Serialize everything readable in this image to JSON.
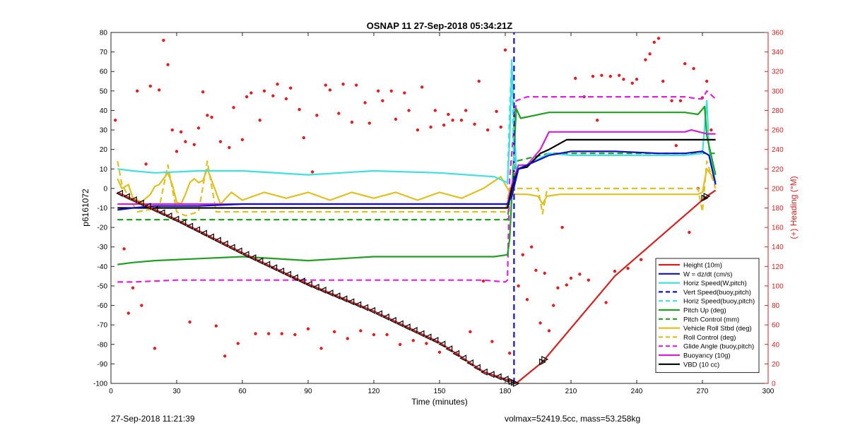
{
  "chart_data": {
    "type": "line",
    "title": "OSNAP 11 27-Sep-2018 05:34:21Z",
    "xlabel": "Time (minutes)",
    "ylabel": "p6161072",
    "y2label": "(+) Heading (°M)",
    "xlim": [
      0,
      300
    ],
    "ylim": [
      -100,
      80
    ],
    "y2lim": [
      0,
      360
    ],
    "xticks": [
      0,
      30,
      60,
      90,
      120,
      150,
      180,
      210,
      240,
      270,
      300
    ],
    "yticks": [
      -100,
      -90,
      -80,
      -70,
      -60,
      -50,
      -40,
      -30,
      -20,
      -10,
      0,
      10,
      20,
      30,
      40,
      50,
      60,
      70,
      80
    ],
    "y2ticks": [
      0,
      20,
      40,
      60,
      80,
      100,
      120,
      140,
      160,
      180,
      200,
      220,
      240,
      260,
      280,
      300,
      320,
      340,
      360
    ],
    "grid": false,
    "legend_position": "bottom-right",
    "series": [
      {
        "name": "Height (10m)",
        "color": "#d62020",
        "style": "solid",
        "x": [
          3,
          30,
          60,
          90,
          120,
          150,
          170,
          183,
          185,
          197,
          230,
          272,
          276
        ],
        "y": [
          -2,
          -16,
          -33,
          -49,
          -63,
          -79,
          -94,
          -99,
          -100,
          -89,
          -45,
          -4,
          -1
        ]
      },
      {
        "name": "W = dz/dt (cm/s)",
        "color": "#1010c0",
        "style": "solid",
        "x": [
          3,
          10,
          20,
          40,
          60,
          90,
          120,
          150,
          175,
          181,
          183,
          186,
          192,
          200,
          210,
          230,
          250,
          262,
          270,
          273,
          276
        ],
        "y": [
          -11,
          -10,
          -9,
          -9,
          -8,
          -8,
          -8,
          -8,
          -8,
          -8,
          -4,
          10,
          13,
          17,
          19,
          19,
          18,
          18,
          19,
          17,
          2
        ]
      },
      {
        "name": "Horiz Speed(W,pitch)",
        "color": "#3fe0e0",
        "style": "solid",
        "x": [
          3,
          10,
          20,
          40,
          60,
          90,
          120,
          150,
          175,
          181,
          182,
          183,
          185,
          190,
          200,
          210,
          240,
          262,
          270,
          272,
          273,
          276
        ],
        "y": [
          10,
          9,
          8,
          9,
          9,
          7,
          9,
          8,
          6,
          3,
          25,
          64,
          10,
          12,
          18,
          17,
          17,
          17,
          18,
          45,
          20,
          3
        ]
      },
      {
        "name": "Vert Speed(buoy,pitch)",
        "color": "#1010d0",
        "style": "dash",
        "x": [
          184,
          184
        ],
        "y": [
          -100,
          80
        ]
      },
      {
        "name": "Horiz Speed(buoy,pitch)",
        "color": "#3fe0e0",
        "style": "dash",
        "x": [
          181,
          182,
          183,
          184
        ],
        "y": [
          2,
          40,
          66,
          8
        ]
      },
      {
        "name": "Pitch Up (deg)",
        "color": "#20a020",
        "style": "solid",
        "x": [
          3,
          10,
          20,
          40,
          60,
          90,
          120,
          150,
          175,
          181,
          182,
          185,
          187,
          200,
          230,
          262,
          268,
          271,
          272,
          276
        ],
        "y": [
          -39,
          -38,
          -37,
          -36,
          -35,
          -37,
          -35,
          -35,
          -35,
          -34,
          -26,
          41,
          36,
          39,
          39,
          39,
          38,
          42,
          27,
          7
        ]
      },
      {
        "name": "Pitch Control (mm)",
        "color": "#20a020",
        "style": "dash",
        "x": [
          3,
          181,
          182,
          185,
          200,
          276
        ],
        "y": [
          -16,
          -16,
          -6,
          14,
          18,
          18
        ]
      },
      {
        "name": "Vehicle Roll Stbd (deg)",
        "color": "#e0c020",
        "style": "solid",
        "x": [
          3,
          5,
          8,
          10,
          14,
          16,
          18,
          20,
          22,
          24,
          26,
          28,
          30,
          32,
          34,
          36,
          38,
          40,
          42,
          44,
          46,
          48,
          50,
          55,
          60,
          70,
          80,
          90,
          100,
          110,
          120,
          130,
          140,
          150,
          160,
          170,
          178,
          182,
          185,
          190,
          195,
          197,
          199,
          205,
          240,
          262,
          268,
          270,
          272,
          276
        ],
        "y": [
          5,
          0,
          2,
          -5,
          -7,
          -5,
          -3,
          1,
          2,
          5,
          8,
          2,
          -7,
          -8,
          -3,
          3,
          5,
          3,
          4,
          10,
          4,
          -2,
          -8,
          -2,
          -6,
          -2,
          -5,
          -2,
          -6,
          -2,
          -5,
          -2,
          -6,
          -2,
          -5,
          0,
          6,
          -2,
          -3,
          -3,
          -4,
          -8,
          -4,
          -3,
          -3,
          -3,
          -3,
          -2,
          10,
          4
        ]
      },
      {
        "name": "Roll Control (deg)",
        "color": "#e0c020",
        "style": "dash",
        "x": [
          3,
          5,
          12,
          22,
          26,
          30,
          34,
          40,
          44,
          48,
          60,
          80,
          100,
          120,
          140,
          160,
          180,
          182,
          195,
          197,
          199,
          200,
          268,
          270,
          272,
          276
        ],
        "y": [
          14,
          2,
          -12,
          -10,
          12,
          -12,
          -14,
          -12,
          14,
          -12,
          -12,
          -12,
          -12,
          -12,
          -12,
          -12,
          -12,
          0,
          0,
          -13,
          -1,
          0,
          0,
          -12,
          14,
          0
        ]
      },
      {
        "name": "Glide Angle (buoy,pitch)",
        "color": "#e020e0",
        "style": "dash",
        "x": [
          3,
          10,
          30,
          50,
          80,
          110,
          140,
          170,
          180,
          181,
          182,
          185,
          190,
          230,
          262,
          268,
          270,
          272,
          276
        ],
        "y": [
          -48,
          -48,
          -47,
          -47,
          -47,
          -47,
          -47,
          -47,
          -48,
          -47,
          5,
          45,
          47,
          47,
          47,
          46,
          46,
          50,
          46
        ]
      },
      {
        "name": "Buoyancy (10g)",
        "color": "#d020d0",
        "style": "solid",
        "x": [
          3,
          30,
          60,
          120,
          181,
          183,
          186,
          190,
          196,
          200,
          240,
          262,
          265,
          272,
          276
        ],
        "y": [
          -8,
          -8,
          -8,
          -8,
          -8,
          2,
          12,
          12,
          20,
          29,
          29,
          29,
          30,
          28,
          28
        ]
      },
      {
        "name": "VBD (10 cc)",
        "color": "#000000",
        "style": "solid",
        "x": [
          3,
          30,
          60,
          120,
          181,
          183,
          186,
          190,
          196,
          200,
          208,
          230,
          262,
          276
        ],
        "y": [
          -10,
          -10,
          -10,
          -10,
          -10,
          0,
          10,
          11,
          18,
          20,
          25,
          25,
          25,
          25
        ]
      }
    ],
    "heading_points": {
      "name": "Heading",
      "color": "#e02020",
      "axis": "right",
      "x": [
        2,
        6,
        8,
        10,
        12,
        14,
        16,
        18,
        20,
        22,
        24,
        26,
        28,
        30,
        32,
        34,
        36,
        38,
        40,
        42,
        44,
        46,
        48,
        50,
        52,
        54,
        56,
        58,
        60,
        62,
        64,
        66,
        68,
        70,
        72,
        74,
        76,
        78,
        80,
        82,
        84,
        86,
        88,
        90,
        92,
        94,
        96,
        98,
        100,
        102,
        104,
        106,
        108,
        110,
        112,
        114,
        116,
        118,
        120,
        122,
        124,
        126,
        128,
        130,
        132,
        134,
        136,
        138,
        140,
        142,
        144,
        146,
        148,
        150,
        152,
        154,
        156,
        158,
        160,
        162,
        164,
        166,
        168,
        170,
        172,
        174,
        176,
        178,
        180,
        182,
        184,
        186,
        188,
        190,
        192,
        194,
        196,
        198,
        200,
        202,
        204,
        206,
        208,
        210,
        212,
        214,
        216,
        218,
        220,
        222,
        224,
        226,
        228,
        230,
        232,
        234,
        236,
        238,
        240,
        242,
        244,
        246,
        248,
        250,
        252,
        254,
        256,
        258,
        260,
        262,
        264,
        266,
        268,
        270,
        272,
        274
      ],
      "y": [
        270,
        138,
        72,
        98,
        300,
        80,
        225,
        305,
        36,
        301,
        352,
        327,
        260,
        238,
        258,
        248,
        63,
        245,
        262,
        299,
        275,
        273,
        59,
        248,
        28,
        242,
        283,
        41,
        250,
        294,
        298,
        51,
        270,
        300,
        51,
        295,
        307,
        51,
        292,
        303,
        50,
        281,
        252,
        56,
        217,
        275,
        36,
        306,
        301,
        53,
        277,
        307,
        46,
        268,
        306,
        54,
        288,
        267,
        50,
        300,
        290,
        50,
        300,
        271,
        40,
        298,
        280,
        44,
        260,
        304,
        41,
        263,
        280,
        32,
        265,
        276,
        270,
        30,
        270,
        280,
        53,
        266,
        310,
        105,
        260,
        43,
        279,
        263,
        342,
        31,
        280,
        100,
        132,
        86,
        140,
        116,
        62,
        113,
        54,
        80,
        98,
        160,
        101,
        108,
        313,
        112,
        294,
        106,
        315,
        270,
        316,
        83,
        315,
        115,
        316,
        312,
        118,
        308,
        312,
        127,
        332,
        338,
        350,
        354,
        310,
        125,
        290,
        244,
        290,
        328,
        155,
        323,
        200,
        293,
        310,
        260
      ]
    }
  },
  "footer": {
    "timestamp": "27-Sep-2018 11:21:39",
    "volmax_mass": "volmax=52419.5cc, mass=53.258kg"
  }
}
